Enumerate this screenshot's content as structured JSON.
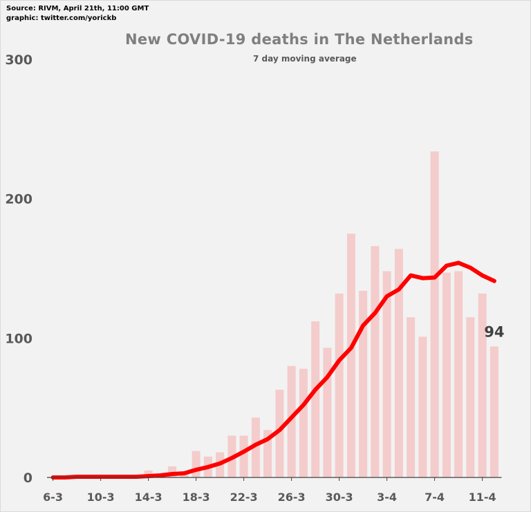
{
  "header": {
    "source": "Source: RIVM, April 21th, 11:00 GMT",
    "credit": "graphic: twitter.com/yorickb"
  },
  "chart_data": {
    "type": "bar",
    "title": "New COVID-19 deaths in The Netherlands",
    "subtitle": "7 day moving average",
    "categories": [
      "6-3",
      "7-3",
      "8-3",
      "9-3",
      "10-3",
      "11-3",
      "12-3",
      "13-3",
      "14-3",
      "15-3",
      "16-3",
      "17-3",
      "18-3",
      "19-3",
      "20-3",
      "21-3",
      "22-3",
      "23-3",
      "24-3",
      "25-3",
      "26-3",
      "27-3",
      "28-3",
      "29-3",
      "30-3",
      "31-3",
      "1-4",
      "2-4",
      "3-4",
      "4-4",
      "5-4",
      "6-4",
      "7-4",
      "8-4",
      "9-4",
      "10-4",
      "11-4",
      "12-4"
    ],
    "x_tick_labels": [
      "6-3",
      "10-3",
      "14-3",
      "18-3",
      "22-3",
      "26-3",
      "30-3",
      "3-4",
      "7-4",
      "11-4"
    ],
    "ylim": [
      0,
      300
    ],
    "y_ticks": [
      0,
      100,
      200,
      300
    ],
    "series": [
      {
        "kind": "bar",
        "color": "#f4cccc",
        "values": [
          0,
          0,
          1,
          0,
          0,
          1,
          1,
          1,
          5,
          0,
          8,
          3,
          19,
          15,
          18,
          30,
          30,
          43,
          34,
          63,
          80,
          78,
          112,
          93,
          132,
          175,
          134,
          166,
          148,
          164,
          115,
          101,
          234,
          147,
          148,
          115,
          132,
          94
        ]
      },
      {
        "kind": "line",
        "color": "#ff0000",
        "values": [
          0,
          0,
          0.5,
          0.5,
          0.5,
          0.5,
          0.5,
          0.5,
          1,
          1.5,
          2.5,
          3,
          5.5,
          7.5,
          10,
          14,
          18.5,
          23.5,
          27.5,
          34,
          43,
          52,
          63,
          72,
          84,
          93,
          109,
          118,
          130,
          135,
          145,
          143,
          143.5,
          152,
          154,
          150.5,
          145,
          141
        ]
      }
    ],
    "last_value_label": "94"
  }
}
